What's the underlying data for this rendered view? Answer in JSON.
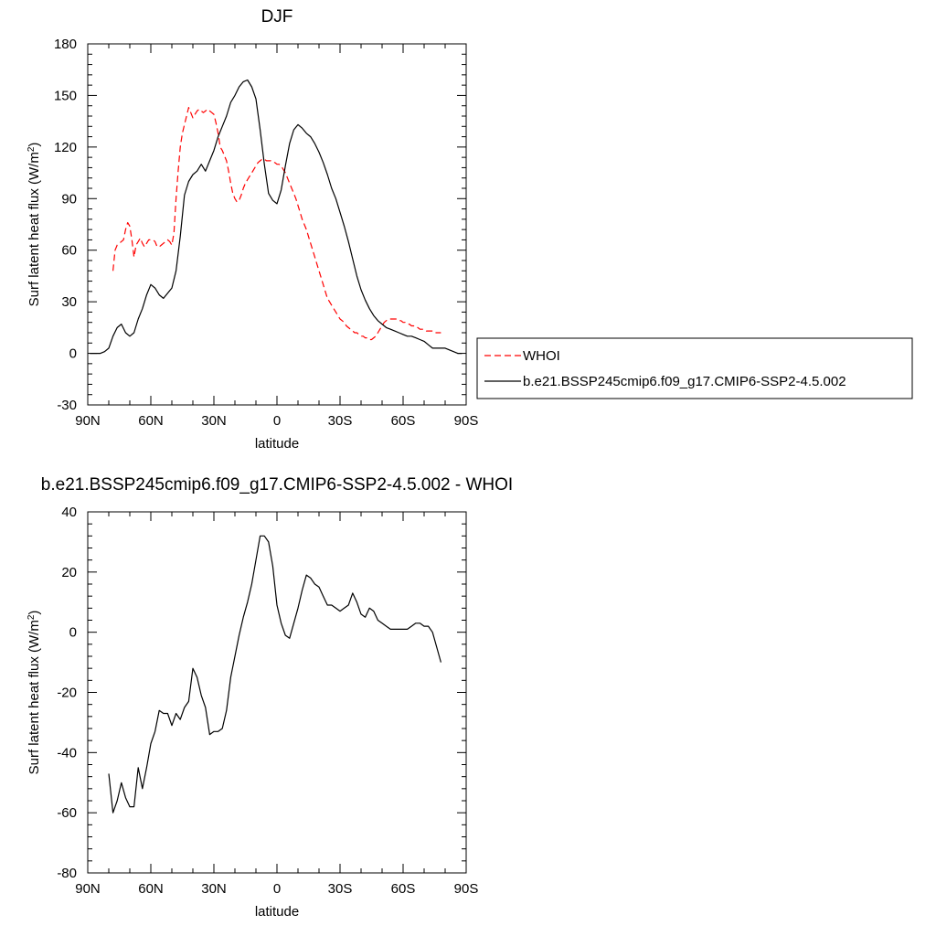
{
  "chart_data": [
    {
      "type": "line",
      "title": "DJF",
      "xlabel": "latitude",
      "ylabel": "Surf latent heat flux (W/m",
      "ylabel_sup": "2",
      "ylabel_close": ")",
      "xlim": [
        90,
        -90
      ],
      "ylim": [
        -30,
        180
      ],
      "x_ticks": [
        90,
        60,
        30,
        0,
        -30,
        -60,
        -90
      ],
      "x_tick_labels": [
        "90N",
        "60N",
        "30N",
        "0",
        "30S",
        "60S",
        "90S"
      ],
      "y_ticks": [
        -30,
        0,
        30,
        60,
        90,
        120,
        150,
        180
      ],
      "y_tick_labels": [
        "-30",
        "0",
        "30",
        "60",
        "90",
        "120",
        "150",
        "180"
      ],
      "legend_position": "right",
      "series": [
        {
          "name": "WHOI",
          "color": "#ff0000",
          "style": "dashed",
          "x": [
            78,
            77,
            76,
            74,
            73,
            72,
            71,
            70,
            69,
            68,
            67,
            66,
            65,
            64,
            63,
            62,
            61,
            60,
            59,
            58,
            57,
            56,
            55,
            54,
            53,
            52,
            51,
            50,
            49,
            48,
            47,
            46,
            45,
            44,
            43,
            42,
            41,
            40,
            39,
            38,
            37,
            36,
            35,
            34,
            33,
            32,
            31,
            30,
            29,
            28,
            27,
            26,
            25,
            24,
            23,
            22,
            21,
            20,
            19,
            18,
            17,
            16,
            15,
            14,
            13,
            12,
            11,
            10,
            9,
            8,
            7,
            6,
            5,
            4,
            3,
            2,
            1,
            0,
            -1,
            -2,
            -3,
            -4,
            -5,
            -6,
            -7,
            -8,
            -9,
            -10,
            -11,
            -12,
            -13,
            -14,
            -15,
            -16,
            -17,
            -18,
            -19,
            -20,
            -21,
            -22,
            -23,
            -24,
            -25,
            -26,
            -27,
            -28,
            -29,
            -30,
            -31,
            -32,
            -33,
            -34,
            -35,
            -36,
            -37,
            -38,
            -39,
            -40,
            -41,
            -42,
            -43,
            -44,
            -45,
            -46,
            -47,
            -48,
            -49,
            -50,
            -51,
            -52,
            -53,
            -54,
            -55,
            -56,
            -57,
            -58,
            -59,
            -60,
            -61,
            -62,
            -63,
            -64,
            -65,
            -66,
            -67,
            -68,
            -69,
            -70,
            -71,
            -72,
            -73,
            -74,
            -75,
            -76,
            -77,
            -78
          ],
          "y": [
            48,
            60,
            63,
            65,
            66,
            72,
            76,
            74,
            66,
            56,
            63,
            65,
            67,
            64,
            62,
            64,
            66,
            66,
            66,
            65,
            62,
            62,
            63,
            64,
            65,
            66,
            65,
            63,
            70,
            90,
            106,
            120,
            128,
            133,
            138,
            143,
            140,
            137,
            139,
            141,
            142,
            141,
            140,
            141,
            142,
            141,
            140,
            139,
            134,
            128,
            120,
            118,
            115,
            112,
            106,
            99,
            93,
            90,
            88,
            89,
            92,
            96,
            99,
            101,
            103,
            105,
            107,
            109,
            111,
            112,
            113,
            113,
            112,
            112,
            112,
            111,
            111,
            110,
            110,
            109,
            107,
            105,
            102,
            99,
            96,
            93,
            90,
            86,
            82,
            78,
            75,
            72,
            68,
            64,
            60,
            56,
            52,
            48,
            44,
            40,
            36,
            32,
            30,
            28,
            26,
            24,
            22,
            20,
            19,
            18,
            16,
            15,
            14,
            13,
            12,
            12,
            11,
            10,
            10,
            9,
            9,
            8,
            8,
            9,
            10,
            12,
            14,
            16,
            18,
            19,
            20,
            20,
            20,
            20,
            20,
            19,
            19,
            18,
            18,
            17,
            17,
            16,
            16,
            15,
            15,
            14,
            14,
            14,
            13,
            13,
            13,
            13,
            12,
            12,
            12,
            12
          ]
        },
        {
          "name": "b.e21.BSSP245cmip6.f09_g17.CMIP6-SSP2-4.5.002",
          "color": "#000000",
          "style": "solid",
          "x": [
            89,
            86,
            84,
            82,
            80,
            78,
            76,
            74,
            72,
            70,
            68,
            66,
            64,
            62,
            60,
            58,
            56,
            54,
            52,
            50,
            48,
            46,
            44,
            42,
            40,
            38,
            36,
            34,
            32,
            30,
            28,
            26,
            24,
            22,
            20,
            18,
            16,
            14,
            12,
            10,
            8,
            6,
            4,
            2,
            0,
            -2,
            -4,
            -6,
            -8,
            -10,
            -12,
            -14,
            -16,
            -18,
            -20,
            -22,
            -24,
            -26,
            -28,
            -30,
            -32,
            -34,
            -36,
            -38,
            -40,
            -42,
            -44,
            -46,
            -48,
            -50,
            -52,
            -54,
            -56,
            -58,
            -60,
            -62,
            -64,
            -66,
            -68,
            -70,
            -72,
            -74,
            -76,
            -78,
            -80,
            -82,
            -84,
            -86,
            -88
          ],
          "y": [
            0,
            0,
            0,
            1,
            3,
            10,
            15,
            17,
            12,
            10,
            12,
            20,
            26,
            34,
            40,
            38,
            34,
            32,
            35,
            38,
            48,
            68,
            92,
            100,
            104,
            106,
            110,
            106,
            112,
            118,
            126,
            132,
            138,
            146,
            150,
            155,
            158,
            159,
            155,
            148,
            130,
            110,
            93,
            89,
            87,
            95,
            109,
            122,
            130,
            133,
            131,
            128,
            126,
            122,
            117,
            111,
            104,
            96,
            90,
            82,
            74,
            65,
            55,
            45,
            37,
            31,
            26,
            22,
            19,
            17,
            15,
            14,
            13,
            12,
            11,
            10,
            10,
            9,
            8,
            7,
            5,
            3,
            3,
            3,
            3,
            2,
            1,
            0,
            0
          ]
        }
      ]
    },
    {
      "type": "line",
      "title": "b.e21.BSSP245cmip6.f09_g17.CMIP6-SSP2-4.5.002 - WHOI",
      "xlabel": "latitude",
      "ylabel": "Surf latent heat flux (W/m",
      "ylabel_sup": "2",
      "ylabel_close": ")",
      "xlim": [
        90,
        -90
      ],
      "ylim": [
        -80,
        40
      ],
      "x_ticks": [
        90,
        60,
        30,
        0,
        -30,
        -60,
        -90
      ],
      "x_tick_labels": [
        "90N",
        "60N",
        "30N",
        "0",
        "30S",
        "60S",
        "90S"
      ],
      "y_ticks": [
        -80,
        -60,
        -40,
        -20,
        0,
        20,
        40
      ],
      "y_tick_labels": [
        "-80",
        "-60",
        "-40",
        "-20",
        "0",
        "20",
        "40"
      ],
      "series": [
        {
          "color": "#000000",
          "style": "solid",
          "x": [
            80,
            78,
            76,
            74,
            72,
            70,
            68,
            66,
            64,
            62,
            60,
            58,
            56,
            54,
            52,
            50,
            48,
            46,
            44,
            42,
            40,
            38,
            36,
            34,
            32,
            30,
            28,
            26,
            24,
            22,
            20,
            18,
            16,
            14,
            12,
            10,
            8,
            6,
            4,
            2,
            0,
            -2,
            -4,
            -6,
            -8,
            -10,
            -12,
            -14,
            -16,
            -18,
            -20,
            -22,
            -24,
            -26,
            -28,
            -30,
            -32,
            -34,
            -36,
            -38,
            -40,
            -42,
            -44,
            -46,
            -48,
            -50,
            -52,
            -54,
            -56,
            -58,
            -60,
            -62,
            -64,
            -66,
            -68,
            -70,
            -72,
            -74,
            -76,
            -78
          ],
          "y": [
            -47,
            -60,
            -56,
            -50,
            -55,
            -58,
            -58,
            -45,
            -52,
            -45,
            -37,
            -33,
            -26,
            -27,
            -27,
            -31,
            -27,
            -29,
            -25,
            -23,
            -12,
            -15,
            -21,
            -25,
            -34,
            -33,
            -33,
            -32,
            -26,
            -15,
            -8,
            -1,
            5,
            10,
            16,
            24,
            32,
            32,
            30,
            22,
            9,
            3,
            -1,
            -2,
            3,
            8,
            14,
            19,
            18,
            16,
            15,
            12,
            9,
            9,
            8,
            7,
            8,
            9,
            13,
            10,
            6,
            5,
            8,
            7,
            4,
            3,
            2,
            1,
            1,
            1,
            1,
            1,
            2,
            3,
            3,
            2,
            2,
            0,
            -5,
            -10
          ]
        }
      ]
    }
  ]
}
